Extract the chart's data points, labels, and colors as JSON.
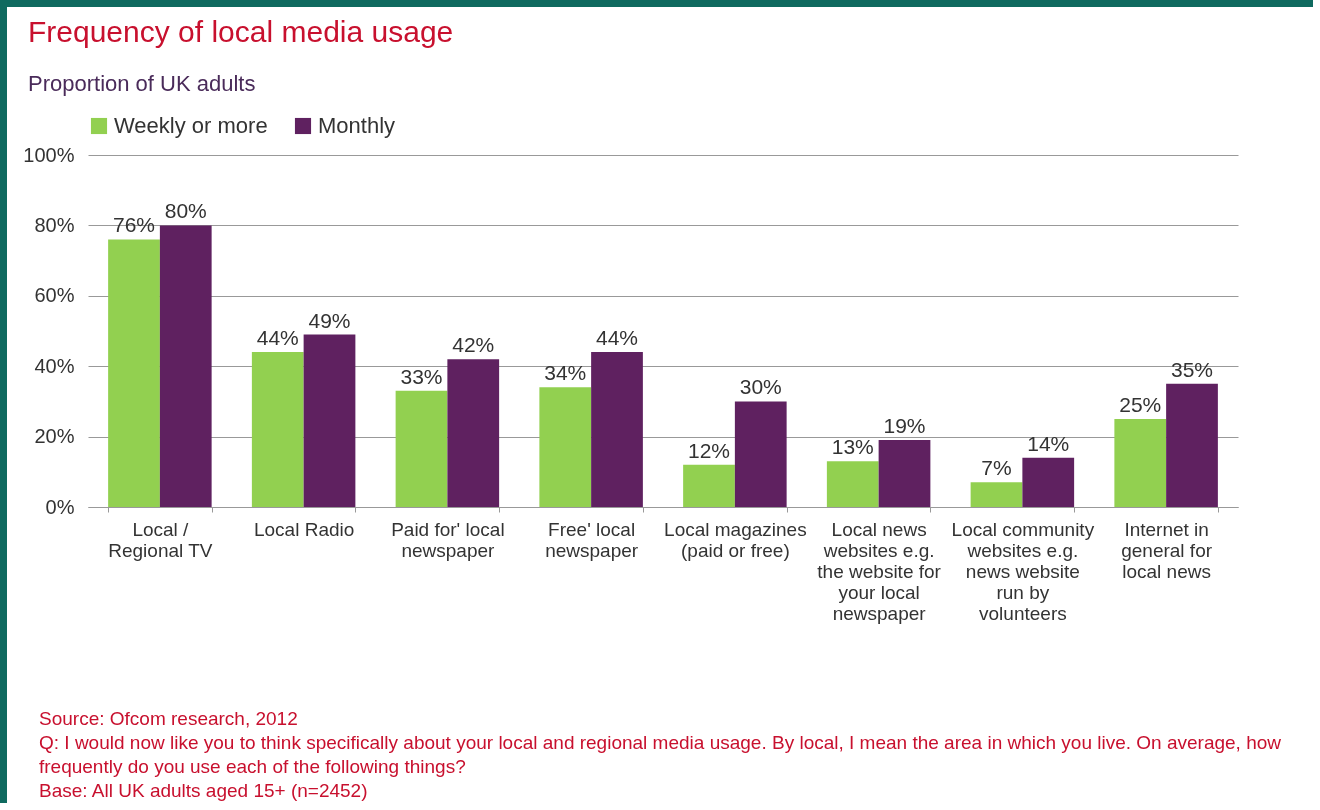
{
  "chart_data": {
    "type": "bar",
    "title": "Frequency of local media usage",
    "subtitle": "Proportion of UK adults",
    "categories": [
      "Local / Regional TV",
      "Local Radio",
      "Paid for' local newspaper",
      "Free' local newspaper",
      "Local magazines (paid or free)",
      "Local news websites e.g. the website for your local newspaper",
      "Local community websites e.g. news website run by volunteers",
      "Internet in general for local news"
    ],
    "series": [
      {
        "name": "Weekly or more",
        "color": "#92d050",
        "values": [
          76,
          44,
          33,
          34,
          12,
          13,
          7,
          25
        ],
        "value_labels": [
          "76%",
          "44%",
          "33%",
          "34%",
          "12%",
          "13%",
          "7%",
          "25%"
        ]
      },
      {
        "name": "Monthly",
        "color": "#5f2160",
        "values": [
          80,
          49,
          42,
          44,
          30,
          19,
          14,
          35
        ],
        "value_labels": [
          "80%",
          "49%",
          "42%",
          "44%",
          "30%",
          "19%",
          "14%",
          "35%"
        ]
      }
    ],
    "ylim": [
      0,
      100
    ],
    "yticks": [
      {
        "value": 0,
        "label": "0%"
      },
      {
        "value": 20,
        "label": "20%"
      },
      {
        "value": 40,
        "label": "40%"
      },
      {
        "value": 60,
        "label": "60%"
      },
      {
        "value": 80,
        "label": "80%"
      },
      {
        "value": 100,
        "label": "100%"
      }
    ],
    "grid": "y",
    "legend": "top",
    "annotations": [
      "Source: Ofcom research, 2012",
      "Q: I would now like you to think specifically about your local and regional media usage. By local, I mean the area in which you live. On average, how frequently do you use each of the following things?",
      "Base: All UK adults aged 15+ (n=2452)"
    ]
  }
}
